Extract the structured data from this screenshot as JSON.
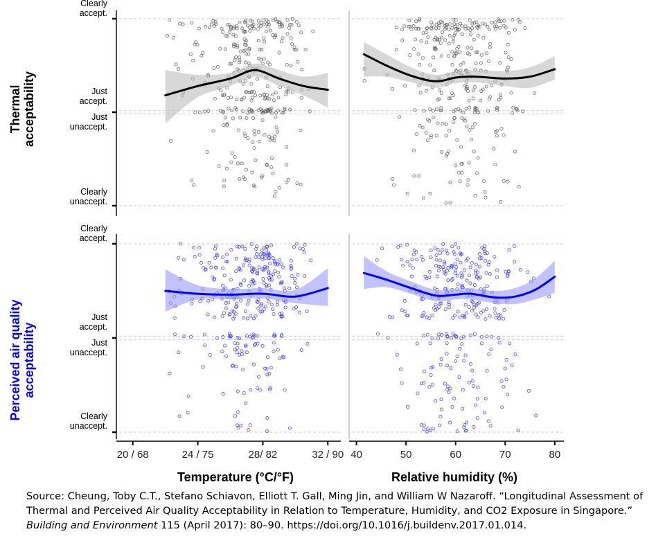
{
  "chart_data": {
    "type": "scatter",
    "panels_layout": "2x2 grid of scatter plots with LOESS fit and confidence band",
    "rows": [
      {
        "name": "Thermal acceptability",
        "ylabel_lines": [
          "Thermal",
          "acceptability"
        ],
        "ylabel_color": "#000000",
        "point_color": "#555555",
        "line_color": "#000000",
        "band_color": "#bdbdbd",
        "ytick_labels": [
          {
            "value": 1,
            "lines": [
              "Clearly",
              "accept."
            ]
          },
          {
            "value": 0.02,
            "lines": [
              "Just",
              "accept."
            ]
          },
          {
            "value": -0.02,
            "lines": [
              "Just",
              "unaccept."
            ]
          },
          {
            "value": -1,
            "lines": [
              "Clearly",
              "unaccept."
            ]
          }
        ]
      },
      {
        "name": "Perceived air quality acceptability",
        "ylabel_lines": [
          "Perceived air quality",
          "acceptability"
        ],
        "ylabel_color": "#0000ff",
        "point_color": "#3333ff",
        "line_color": "#0000ff",
        "band_color": "#9a9aff",
        "ytick_labels": [
          {
            "value": 1,
            "lines": [
              "Clearly",
              "accept."
            ]
          },
          {
            "value": 0.02,
            "lines": [
              "Just",
              "accept."
            ]
          },
          {
            "value": -0.02,
            "lines": [
              "Just",
              "unaccept."
            ]
          },
          {
            "value": -1,
            "lines": [
              "Clearly",
              "unaccept."
            ]
          }
        ]
      }
    ],
    "columns": [
      {
        "xlabel": "Temperature (°C/°F)",
        "xlim": [
          19.5,
          32.5
        ],
        "xticks": [
          {
            "value": 20,
            "label": "20 / 68"
          },
          {
            "value": 24,
            "label": "24 / 75"
          },
          {
            "value": 28,
            "label": "28/ 82"
          },
          {
            "value": 32,
            "label": "32 / 90"
          }
        ],
        "x_range_points": [
          21.8,
          31.8
        ]
      },
      {
        "xlabel": "Relative humidity (%)",
        "xlim": [
          39.5,
          81.0
        ],
        "xticks": [
          {
            "value": 40,
            "label": "40"
          },
          {
            "value": 50,
            "label": "50"
          },
          {
            "value": 60,
            "label": "60"
          },
          {
            "value": 70,
            "label": "70"
          },
          {
            "value": 80,
            "label": "80"
          }
        ],
        "x_range_points": [
          41.5,
          80.0
        ]
      }
    ],
    "ylim": [
      -1.05,
      1.05
    ],
    "grid_lines": [
      1,
      0,
      -1
    ],
    "grid_style": "dashed light gray",
    "fits": [
      {
        "row": 0,
        "col": 0,
        "x": [
          22,
          24,
          26,
          27.5,
          29,
          30.5,
          32
        ],
        "y": [
          0.18,
          0.28,
          0.36,
          0.45,
          0.36,
          0.28,
          0.24
        ],
        "band_lower": [
          -0.12,
          0.16,
          0.28,
          0.38,
          0.28,
          0.18,
          0.05
        ],
        "band_upper": [
          0.45,
          0.4,
          0.42,
          0.52,
          0.45,
          0.38,
          0.42
        ]
      },
      {
        "row": 0,
        "col": 1,
        "x": [
          41.5,
          46,
          51,
          56,
          60,
          64,
          70,
          75,
          80
        ],
        "y": [
          0.62,
          0.5,
          0.39,
          0.33,
          0.37,
          0.38,
          0.36,
          0.38,
          0.46
        ],
        "band_lower": [
          0.38,
          0.38,
          0.32,
          0.26,
          0.31,
          0.32,
          0.28,
          0.26,
          0.35
        ],
        "band_upper": [
          0.75,
          0.62,
          0.48,
          0.4,
          0.44,
          0.45,
          0.44,
          0.48,
          0.6
        ]
      },
      {
        "row": 1,
        "col": 0,
        "x": [
          22,
          24,
          26,
          28,
          30,
          32
        ],
        "y": [
          0.5,
          0.47,
          0.46,
          0.47,
          0.44,
          0.53
        ],
        "band_lower": [
          0.28,
          0.41,
          0.41,
          0.42,
          0.37,
          0.34
        ],
        "band_upper": [
          0.73,
          0.56,
          0.52,
          0.53,
          0.51,
          0.74
        ]
      },
      {
        "row": 1,
        "col": 1,
        "x": [
          41.5,
          46,
          51,
          56,
          60,
          63,
          68,
          72,
          76,
          80
        ],
        "y": [
          0.69,
          0.62,
          0.53,
          0.45,
          0.46,
          0.47,
          0.43,
          0.44,
          0.51,
          0.65
        ],
        "band_lower": [
          0.52,
          0.54,
          0.47,
          0.39,
          0.41,
          0.41,
          0.37,
          0.36,
          0.41,
          0.48
        ],
        "band_upper": [
          0.87,
          0.71,
          0.6,
          0.51,
          0.52,
          0.53,
          0.5,
          0.53,
          0.63,
          0.82
        ]
      }
    ],
    "scatter_points_per_panel": "several hundred individual responses (jittered); values concentrated between just acceptable and clearly acceptable"
  },
  "source": {
    "prefix": "Source: Cheung, Toby C.T., Stefano Schiavon, Elliott T. Gall, Ming Jin, and William W Nazaroff. “Longitudinal Assessment of Thermal and Perceived Air Quality Acceptability in Relation to Temperature, Humidity, and CO2 Exposure in Singapore.” ",
    "journal": "Building and Environment",
    "suffix": " 115 (April 2017): 80–90. https://doi.org/10.1016/j.buildenv.2017.01.014."
  }
}
